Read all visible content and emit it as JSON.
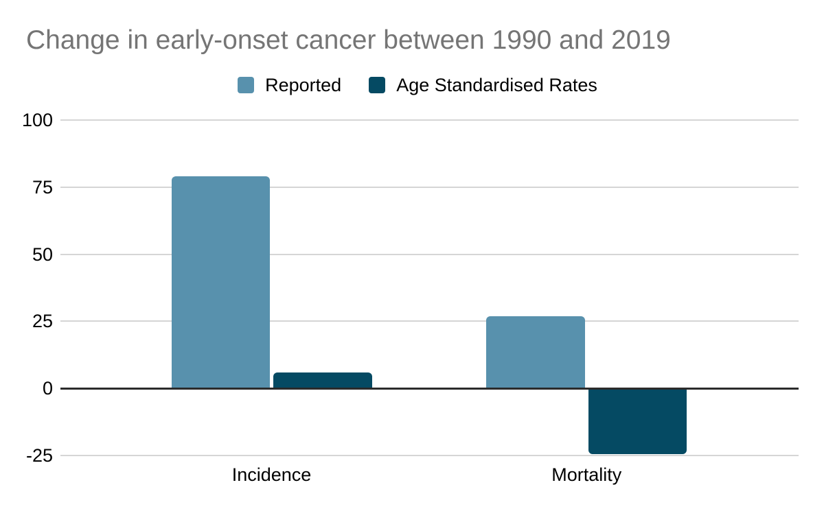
{
  "title": "Change in early-onset cancer between 1990 and 2019",
  "legend": {
    "items": [
      {
        "label": "Reported",
        "color": "#5891ad"
      },
      {
        "label": "Age Standardised Rates",
        "color": "#054a63"
      }
    ]
  },
  "chart_data": {
    "type": "bar",
    "title": "Change in early-onset cancer between 1990 and 2019",
    "categories": [
      "Incidence",
      "Mortality"
    ],
    "series": [
      {
        "name": "Reported",
        "color": "#5891ad",
        "values": [
          79,
          27
        ]
      },
      {
        "name": "Age Standardised Rates",
        "color": "#054a63",
        "values": [
          6,
          -24
        ]
      }
    ],
    "xlabel": "",
    "ylabel": "",
    "ylim": [
      -25,
      100
    ],
    "yticks": [
      100,
      75,
      50,
      25,
      0,
      -25
    ],
    "grid": true,
    "legend_position": "top"
  },
  "colors": {
    "background": "#ffffff",
    "title_text": "#757575",
    "axis_text": "#000000",
    "gridline": "#d5d5d5",
    "zero_line": "#2b2b2b"
  }
}
